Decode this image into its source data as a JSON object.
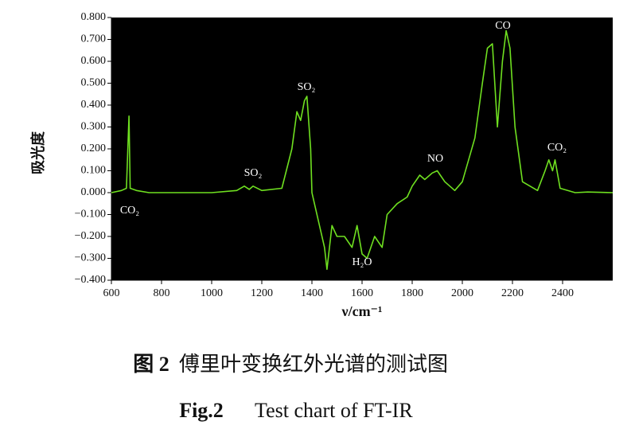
{
  "chart_data": {
    "type": "line",
    "x_label": "ν/cm⁻¹",
    "y_label": "吸光度",
    "xlim": [
      600,
      2600
    ],
    "xticks": [
      600,
      800,
      1000,
      1200,
      1400,
      1600,
      1800,
      2000,
      2200,
      2400
    ],
    "ylim": [
      -0.4,
      0.8
    ],
    "yticks": [
      {
        "value": 0.8,
        "label": "0.800"
      },
      {
        "value": 0.7,
        "label": "0.700"
      },
      {
        "value": 0.6,
        "label": "0.600"
      },
      {
        "value": 0.5,
        "label": "0.500"
      },
      {
        "value": 0.4,
        "label": "0.400"
      },
      {
        "value": 0.3,
        "label": "0.300"
      },
      {
        "value": 0.2,
        "label": "0.200"
      },
      {
        "value": 0.1,
        "label": "0.100"
      },
      {
        "value": 0,
        "label": "0.000"
      },
      {
        "value": -0.1,
        "label": "−0.100"
      },
      {
        "value": -0.2,
        "label": "−0.200"
      },
      {
        "value": -0.3,
        "label": "−0.300"
      },
      {
        "value": -0.4,
        "label": "−0.400"
      }
    ],
    "background": "#000000",
    "x": [
      600,
      640,
      660,
      670,
      675,
      700,
      750,
      1000,
      1100,
      1130,
      1150,
      1165,
      1200,
      1280,
      1320,
      1340,
      1355,
      1370,
      1380,
      1395,
      1400,
      1420,
      1450,
      1460,
      1480,
      1500,
      1530,
      1560,
      1580,
      1600,
      1620,
      1650,
      1680,
      1700,
      1740,
      1780,
      1800,
      1830,
      1850,
      1880,
      1900,
      1930,
      1970,
      2000,
      2050,
      2080,
      2100,
      2120,
      2140,
      2160,
      2175,
      2190,
      2210,
      2240,
      2300,
      2330,
      2345,
      2360,
      2370,
      2390,
      2450,
      2500,
      2600
    ],
    "series": [
      {
        "name": "FT-IR",
        "color": "#6fe020",
        "values": [
          0,
          0.01,
          0.02,
          0.35,
          0.02,
          0.01,
          0,
          0,
          0.01,
          0.03,
          0.015,
          0.03,
          0.01,
          0.02,
          0.2,
          0.37,
          0.33,
          0.42,
          0.44,
          0.2,
          0,
          -0.1,
          -0.25,
          -0.35,
          -0.15,
          -0.2,
          -0.2,
          -0.25,
          -0.15,
          -0.28,
          -0.3,
          -0.2,
          -0.25,
          -0.1,
          -0.05,
          -0.02,
          0.03,
          0.08,
          0.06,
          0.09,
          0.1,
          0.05,
          0.01,
          0.05,
          0.25,
          0.5,
          0.66,
          0.68,
          0.3,
          0.6,
          0.74,
          0.66,
          0.3,
          0.05,
          0.01,
          0.1,
          0.15,
          0.1,
          0.15,
          0.02,
          0,
          0.003,
          0
        ]
      }
    ],
    "annotations": [
      "CO₂",
      "SO₂",
      "SO₂",
      "NO",
      "CO",
      "CO₂",
      "H₂O"
    ]
  },
  "caption": {
    "cn_label": "图 2",
    "cn_text": "傅里叶变换红外光谱的测试图",
    "en_label": "Fig.2",
    "en_text": "Test chart of FT-IR"
  }
}
